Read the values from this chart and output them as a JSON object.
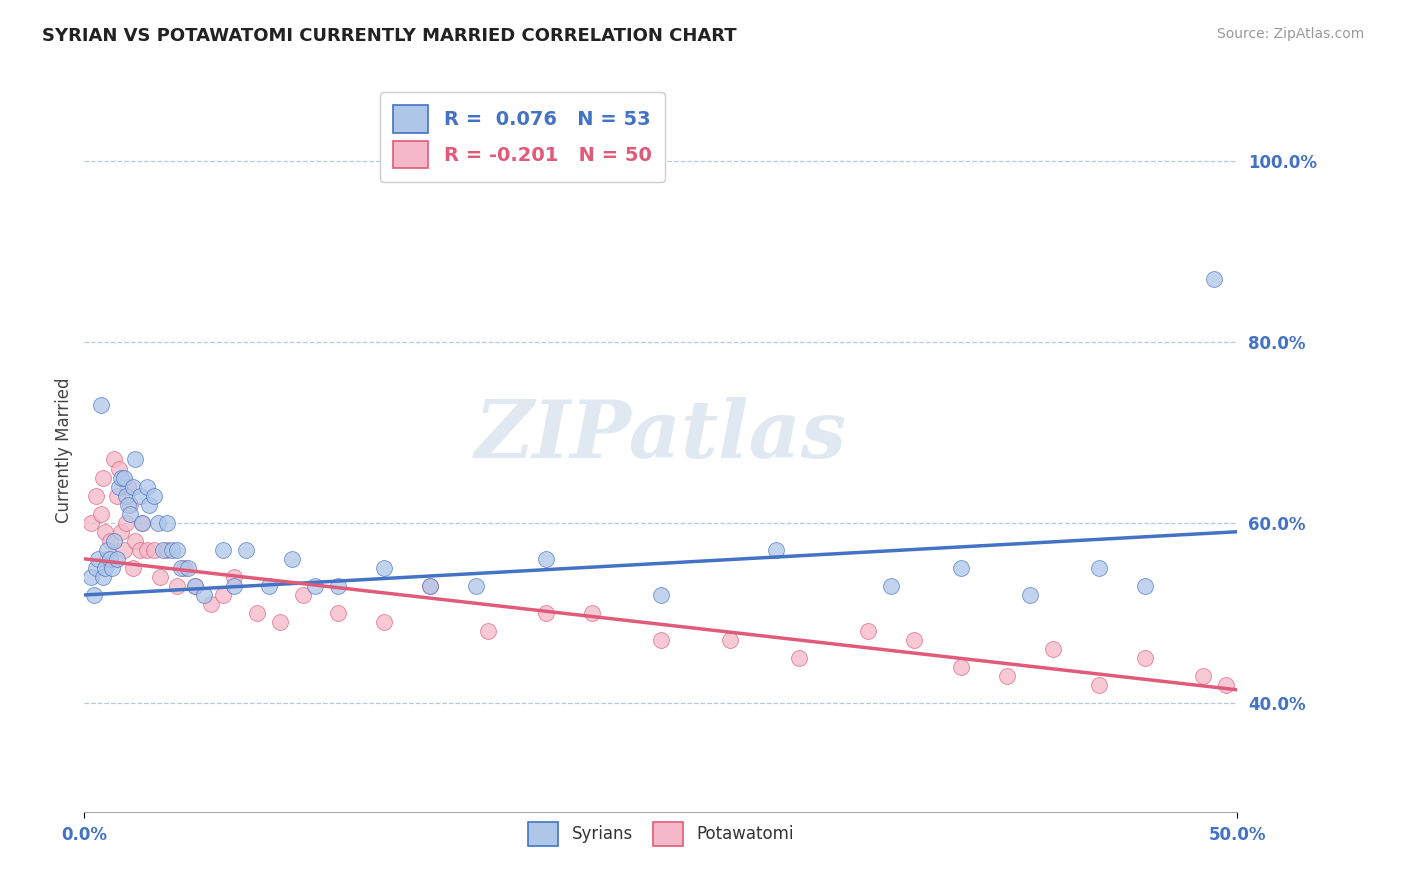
{
  "title": "SYRIAN VS POTAWATOMI CURRENTLY MARRIED CORRELATION CHART",
  "source": "Source: ZipAtlas.com",
  "ylabel": "Currently Married",
  "legend_blue_r": "R =  0.076",
  "legend_blue_n": "N = 53",
  "legend_pink_r": "R = -0.201",
  "legend_pink_n": "N = 50",
  "legend_label1": "Syrians",
  "legend_label2": "Potawatomi",
  "watermark": "ZIPatlas",
  "blue_color": "#aec6e8",
  "pink_color": "#f5b8c8",
  "blue_line_color": "#4472C4",
  "pink_line_color": "#e05a7a",
  "xlim": [
    0.0,
    0.5
  ],
  "ylim": [
    0.28,
    1.08
  ],
  "ytick_labels": [
    "40.0%",
    "60.0%",
    "80.0%",
    "100.0%"
  ],
  "ytick_values": [
    0.4,
    0.6,
    0.8,
    1.0
  ],
  "blue_scatter_x": [
    0.003,
    0.004,
    0.005,
    0.006,
    0.007,
    0.008,
    0.009,
    0.01,
    0.011,
    0.012,
    0.013,
    0.014,
    0.015,
    0.016,
    0.017,
    0.018,
    0.019,
    0.02,
    0.021,
    0.022,
    0.024,
    0.025,
    0.027,
    0.028,
    0.03,
    0.032,
    0.034,
    0.036,
    0.038,
    0.04,
    0.042,
    0.045,
    0.048,
    0.052,
    0.06,
    0.065,
    0.07,
    0.08,
    0.09,
    0.1,
    0.11,
    0.13,
    0.15,
    0.17,
    0.2,
    0.25,
    0.3,
    0.35,
    0.38,
    0.41,
    0.44,
    0.46,
    0.49
  ],
  "blue_scatter_y": [
    0.54,
    0.52,
    0.55,
    0.56,
    0.73,
    0.54,
    0.55,
    0.57,
    0.56,
    0.55,
    0.58,
    0.56,
    0.64,
    0.65,
    0.65,
    0.63,
    0.62,
    0.61,
    0.64,
    0.67,
    0.63,
    0.6,
    0.64,
    0.62,
    0.63,
    0.6,
    0.57,
    0.6,
    0.57,
    0.57,
    0.55,
    0.55,
    0.53,
    0.52,
    0.57,
    0.53,
    0.57,
    0.53,
    0.56,
    0.53,
    0.53,
    0.55,
    0.53,
    0.53,
    0.56,
    0.52,
    0.57,
    0.53,
    0.55,
    0.52,
    0.55,
    0.53,
    0.87
  ],
  "pink_scatter_x": [
    0.003,
    0.005,
    0.007,
    0.008,
    0.009,
    0.01,
    0.011,
    0.013,
    0.014,
    0.015,
    0.016,
    0.017,
    0.018,
    0.019,
    0.02,
    0.021,
    0.022,
    0.024,
    0.025,
    0.027,
    0.03,
    0.033,
    0.036,
    0.04,
    0.043,
    0.048,
    0.055,
    0.06,
    0.065,
    0.075,
    0.085,
    0.095,
    0.11,
    0.13,
    0.15,
    0.175,
    0.2,
    0.22,
    0.25,
    0.28,
    0.31,
    0.34,
    0.36,
    0.38,
    0.4,
    0.42,
    0.44,
    0.46,
    0.485,
    0.495
  ],
  "pink_scatter_y": [
    0.6,
    0.63,
    0.61,
    0.65,
    0.59,
    0.56,
    0.58,
    0.67,
    0.63,
    0.66,
    0.59,
    0.57,
    0.6,
    0.64,
    0.62,
    0.55,
    0.58,
    0.57,
    0.6,
    0.57,
    0.57,
    0.54,
    0.57,
    0.53,
    0.55,
    0.53,
    0.51,
    0.52,
    0.54,
    0.5,
    0.49,
    0.52,
    0.5,
    0.49,
    0.53,
    0.48,
    0.5,
    0.5,
    0.47,
    0.47,
    0.45,
    0.48,
    0.47,
    0.44,
    0.43,
    0.46,
    0.42,
    0.45,
    0.43,
    0.42
  ],
  "blue_line_x": [
    0.0,
    0.5
  ],
  "blue_line_y": [
    0.52,
    0.59
  ],
  "pink_line_x": [
    0.0,
    0.5
  ],
  "pink_line_y": [
    0.56,
    0.415
  ]
}
